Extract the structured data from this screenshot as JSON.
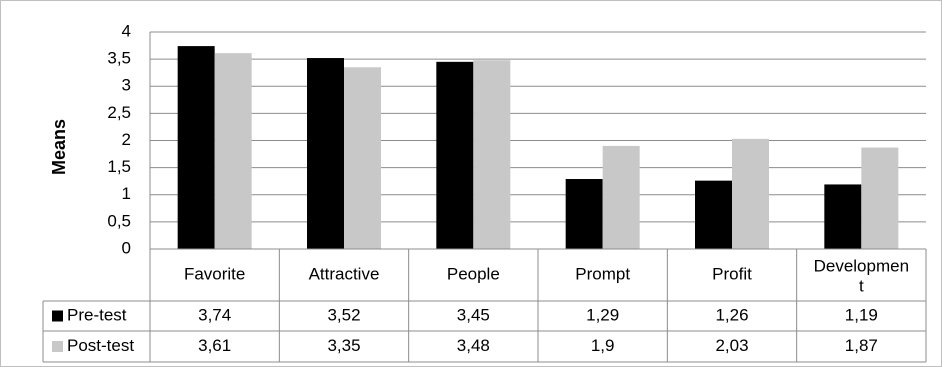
{
  "chart_data": {
    "type": "bar",
    "ylabel": "Means",
    "xlabel": "",
    "title": "",
    "ylim": [
      0,
      4
    ],
    "yticks": [
      "0",
      "0,5",
      "1",
      "1,5",
      "2",
      "2,5",
      "3",
      "3,5",
      "4"
    ],
    "categories": [
      "Favorite",
      "Attractive",
      "People",
      "Prompt",
      "Profit",
      "Developmen t"
    ],
    "series": [
      {
        "name": "Pre-test",
        "color": "#000000",
        "values": [
          3.74,
          3.52,
          3.45,
          1.29,
          1.26,
          1.19
        ],
        "labels": [
          "3,74",
          "3,52",
          "3,45",
          "1,29",
          "1,26",
          "1,19"
        ]
      },
      {
        "name": "Post-test",
        "color": "#c8c8c8",
        "values": [
          3.61,
          3.35,
          3.48,
          1.9,
          2.03,
          1.87
        ],
        "labels": [
          "3,61",
          "3,35",
          "3,48",
          "1,9",
          "2,03",
          "1,87"
        ]
      }
    ],
    "grid": true,
    "legend": "data table rows below chart"
  }
}
